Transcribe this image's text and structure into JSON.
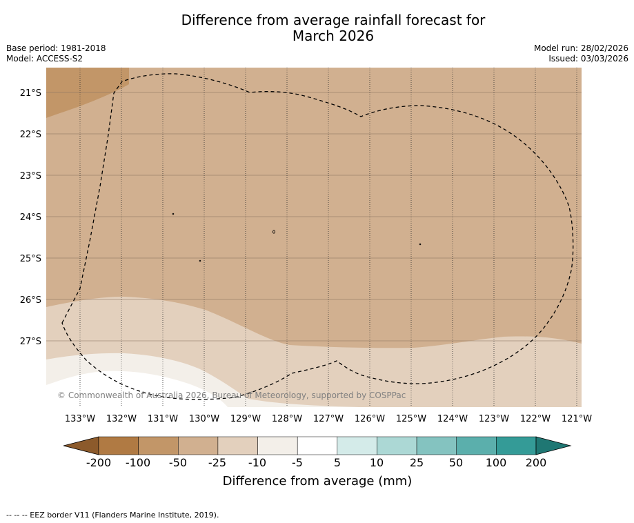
{
  "title": {
    "line1": "Difference from average rainfall forecast for",
    "line2": "March 2026"
  },
  "meta_left": {
    "base_period": "Base period: 1981-2018",
    "model": "Model: ACCESS-S2"
  },
  "meta_right": {
    "model_run": "Model run: 28/02/2026",
    "issued": "Issued: 03/03/2026"
  },
  "map": {
    "latitude_labels": [
      "21°S",
      "22°S",
      "23°S",
      "24°S",
      "25°S",
      "26°S",
      "27°S"
    ],
    "longitude_labels": [
      "133°W",
      "132°W",
      "131°W",
      "130°W",
      "129°W",
      "128°W",
      "127°W",
      "126°W",
      "125°W",
      "124°W",
      "123°W",
      "122°W",
      "121°W"
    ],
    "copyright": "© Commonwealth of Australia 2026, Bureau of Meteorology, supported by COSPPac"
  },
  "colorbar": {
    "tick_labels": [
      "-200",
      "-100",
      "-50",
      "-25",
      "-10",
      "-5",
      "5",
      "10",
      "25",
      "50",
      "100",
      "200"
    ],
    "label": "Difference from average (mm)",
    "colors": [
      "#8c5a2b",
      "#b07a43",
      "#c29668",
      "#d1b090",
      "#e3d0bd",
      "#f3efe9",
      "#ffffff",
      "#d4ebe9",
      "#acd8d5",
      "#84c3c0",
      "#5bafac",
      "#349b97",
      "#1f7773"
    ]
  },
  "footer": {
    "text": "--  --  -- EEZ border V11 (Flanders Marine Institute, 2019)."
  }
}
